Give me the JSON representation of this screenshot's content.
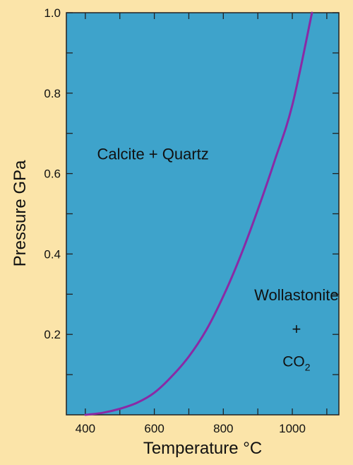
{
  "chart_data": {
    "type": "line",
    "xlabel": "Temperature °C",
    "ylabel": "Pressure GPa",
    "xlim": [
      345,
      1135
    ],
    "ylim": [
      0,
      1.0
    ],
    "x_ticks": [
      400,
      500,
      600,
      700,
      800,
      900,
      1000,
      1100
    ],
    "x_tick_labels": [
      "400",
      "",
      "600",
      "",
      "800",
      "",
      "1000",
      ""
    ],
    "y_ticks": [
      0.1,
      0.2,
      0.3,
      0.4,
      0.5,
      0.6,
      0.7,
      0.8,
      0.9,
      1.0
    ],
    "y_tick_labels": [
      "",
      "0.2",
      "",
      "0.4",
      "",
      "0.6",
      "",
      "0.8",
      "",
      "1.0"
    ],
    "grid": false,
    "background_color": "#3ea3cb",
    "page_color": "#fbe4a9",
    "line_color": "#8a2aa5",
    "series": [
      {
        "points": [
          [
            400,
            0.0
          ],
          [
            450,
            0.005
          ],
          [
            500,
            0.015
          ],
          [
            550,
            0.03
          ],
          [
            600,
            0.055
          ],
          [
            650,
            0.095
          ],
          [
            700,
            0.145
          ],
          [
            750,
            0.21
          ],
          [
            800,
            0.295
          ],
          [
            850,
            0.395
          ],
          [
            900,
            0.51
          ],
          [
            950,
            0.635
          ],
          [
            1000,
            0.77
          ],
          [
            1057,
            1.0
          ]
        ]
      }
    ],
    "annotations": [
      {
        "id": "calcite-quartz",
        "text": "Calcite + Quartz",
        "x": 596,
        "y": 0.635
      },
      {
        "id": "wollastonite",
        "text": "Wollastonite",
        "x": 1012,
        "y": 0.285
      },
      {
        "id": "plus",
        "text": "+",
        "x": 1012,
        "y": 0.2
      },
      {
        "id": "co2",
        "text": "CO",
        "subscript": "2",
        "x": 1012,
        "y": 0.12
      }
    ]
  }
}
